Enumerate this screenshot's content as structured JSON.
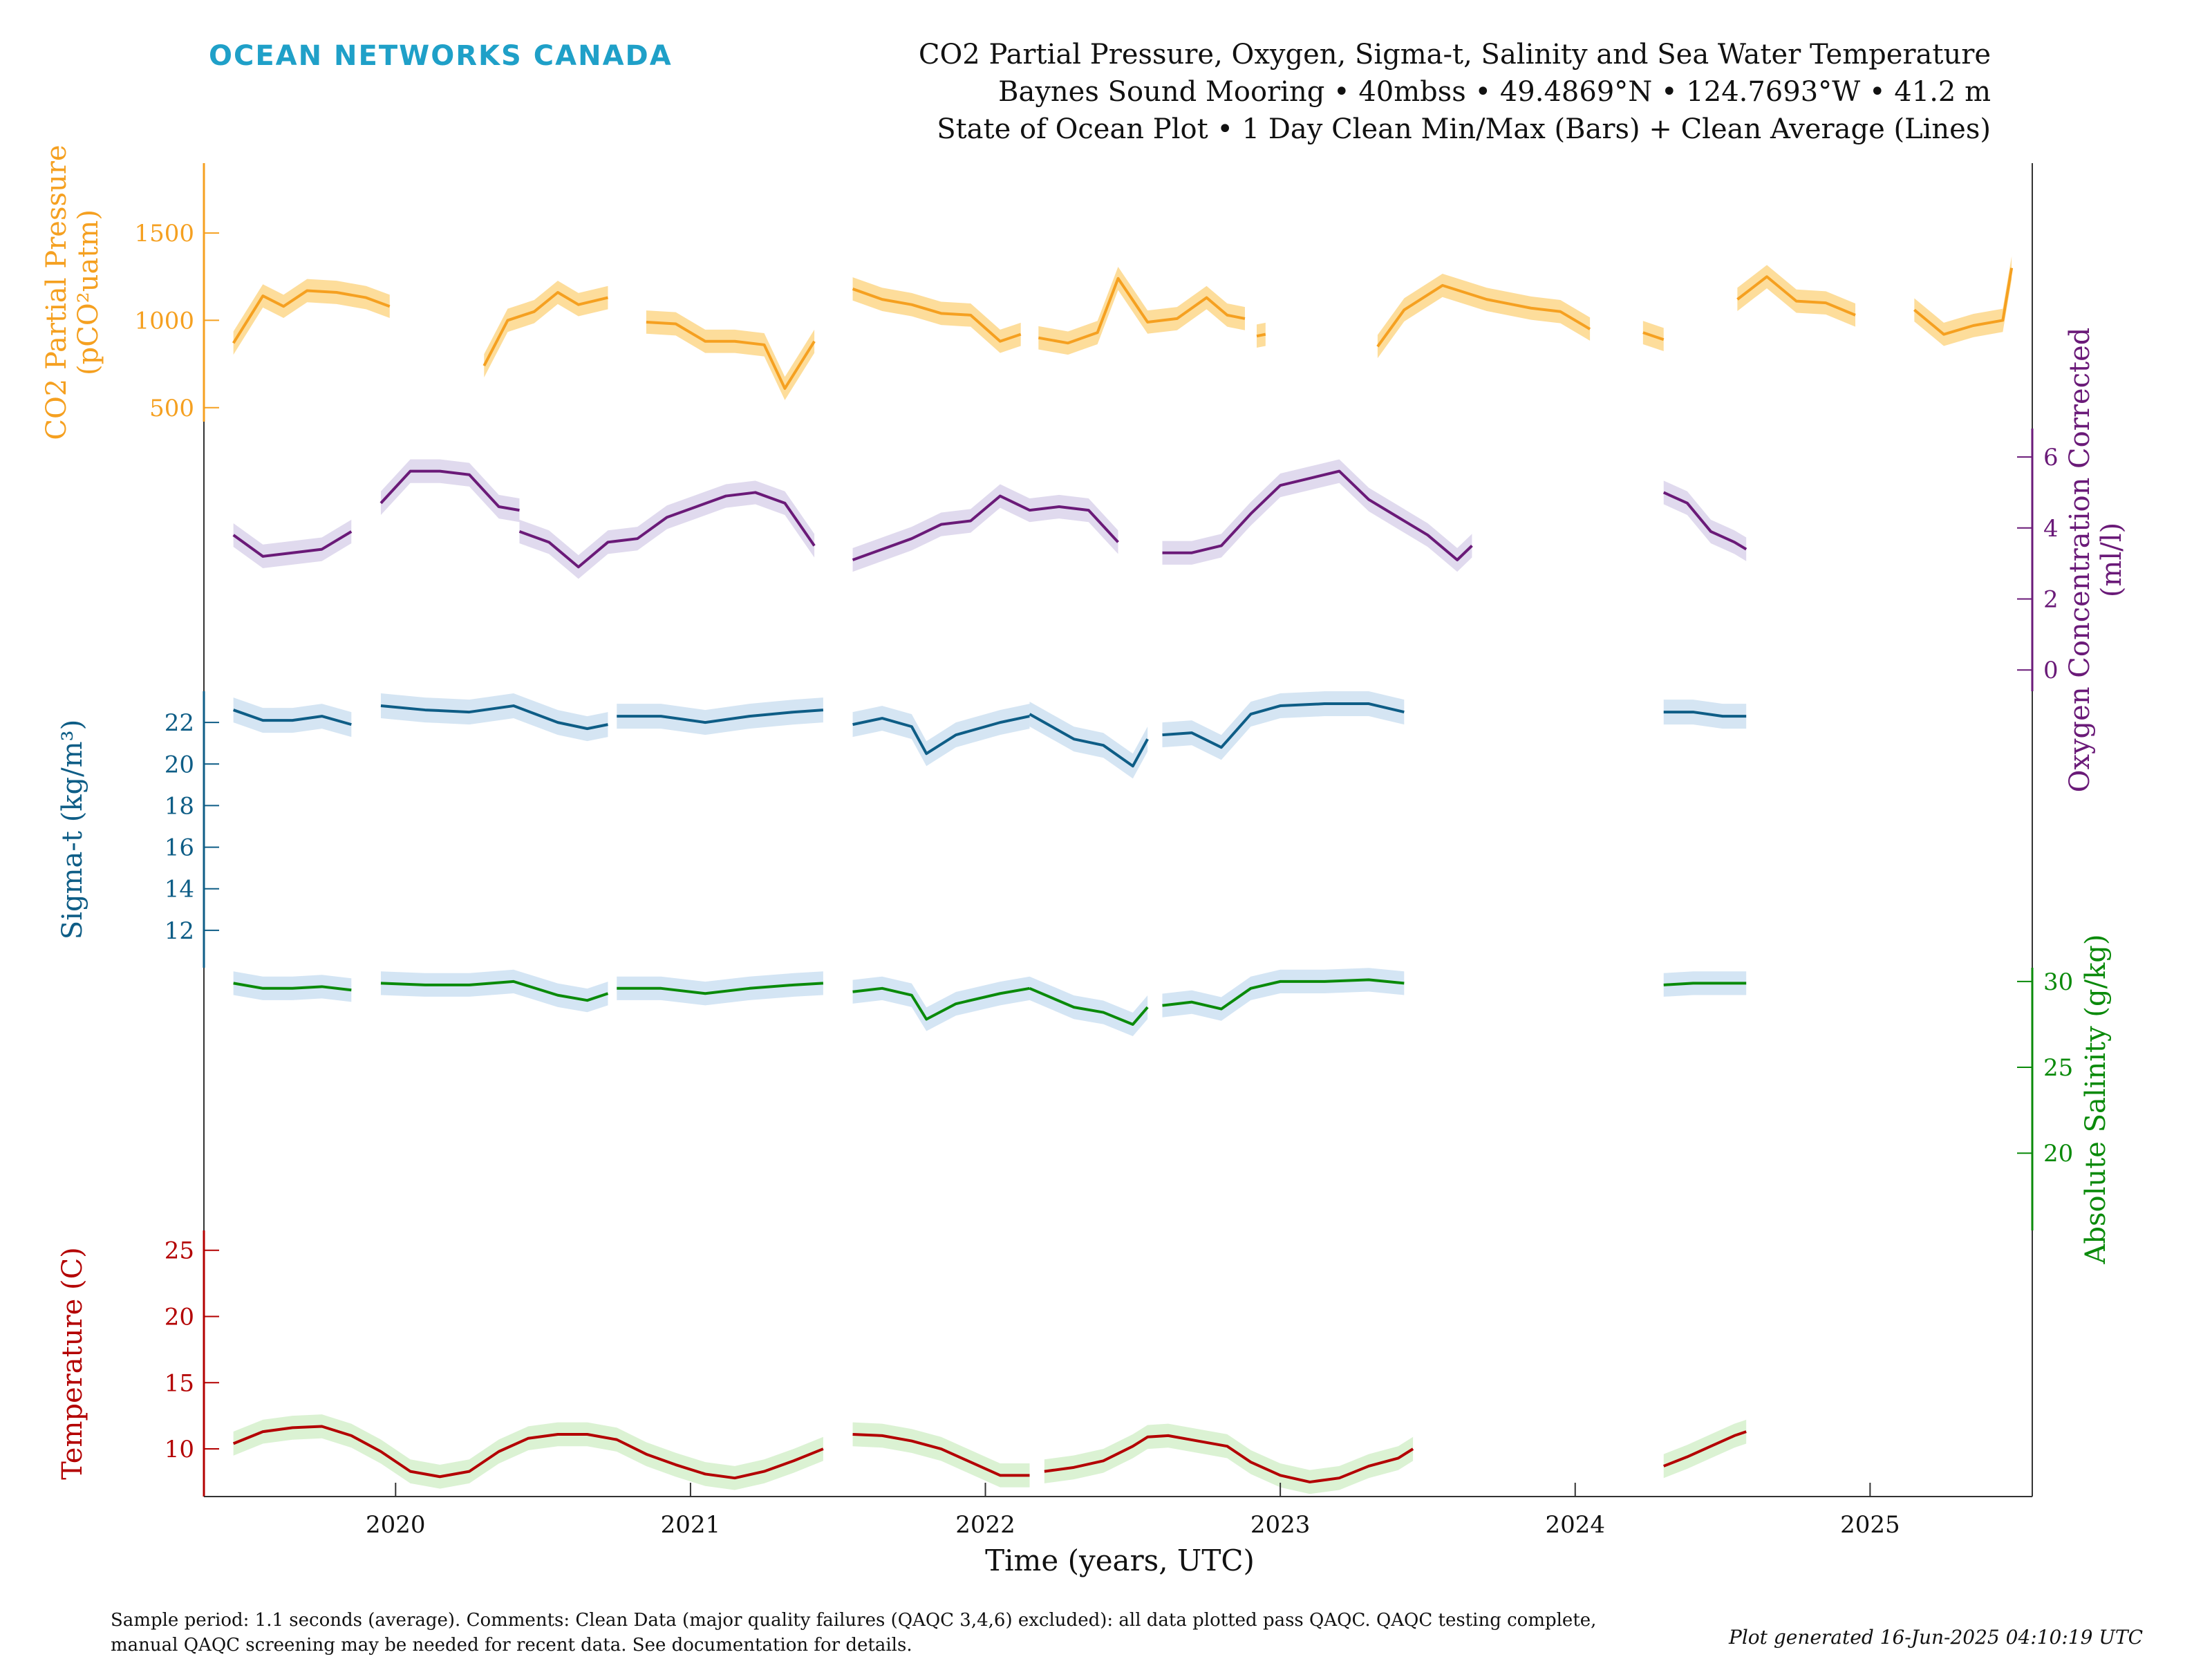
{
  "header": {
    "brand": "OCEAN NETWORKS CANADA",
    "brand_color": "#1fa0c8",
    "title_lines": [
      "CO2 Partial Pressure, Oxygen, Sigma-t, Salinity and Sea Water Temperature",
      "Baynes Sound Mooring • 40mbss • 49.4869°N • 124.7693°W • 41.2 m",
      "State of Ocean Plot • 1 Day Clean Min/Max (Bars) + Clean Average (Lines)"
    ]
  },
  "footer": {
    "notes": [
      "Sample period: 1.1 seconds (average). Comments: Clean Data (major quality failures (QAQC 3,4,6) excluded): all data plotted pass QAQC. QAQC testing complete,",
      "manual QAQC screening may be needed for recent data. See documentation for details."
    ],
    "generated": "Plot generated 16-Jun-2025 04:10:19 UTC"
  },
  "chart_data": {
    "type": "line",
    "xlabel": "Time (years, UTC)",
    "xlim": [
      2019.35,
      2025.55
    ],
    "xticks": [
      "2020",
      "2021",
      "2022",
      "2023",
      "2024",
      "2025"
    ],
    "xtick_values": [
      2020,
      2021,
      2022,
      2023,
      2024,
      2025
    ],
    "series": [
      {
        "key": "co2",
        "ylabel_lines": [
          "CO2 Partial Pressure",
          "(pCO²uatm)"
        ],
        "axis_side": "left",
        "color": "#f5a020",
        "band_color": "#fcd27a",
        "ylim": [
          420,
          1900
        ],
        "yticks": [
          500,
          1000,
          1500
        ],
        "segments": [
          {
            "x": [
              2019.45,
              2019.55,
              2019.62,
              2019.7,
              2019.8,
              2019.9,
              2019.98
            ],
            "y": [
              870,
              1140,
              1080,
              1170,
              1160,
              1130,
              1080
            ]
          },
          {
            "x": [
              2020.3,
              2020.38,
              2020.47,
              2020.55,
              2020.62,
              2020.72
            ],
            "y": [
              740,
              1000,
              1050,
              1160,
              1090,
              1130
            ]
          },
          {
            "x": [
              2020.85,
              2020.95,
              2021.05,
              2021.15,
              2021.25,
              2021.32,
              2021.42
            ],
            "y": [
              990,
              980,
              880,
              880,
              860,
              610,
              880
            ]
          },
          {
            "x": [
              2021.55,
              2021.65,
              2021.75,
              2021.85,
              2021.95,
              2022.05,
              2022.12
            ],
            "y": [
              1180,
              1120,
              1090,
              1040,
              1030,
              880,
              920
            ]
          },
          {
            "x": [
              2022.18,
              2022.28,
              2022.38,
              2022.45,
              2022.55,
              2022.65,
              2022.75,
              2022.82,
              2022.88
            ],
            "y": [
              900,
              870,
              930,
              1240,
              990,
              1010,
              1130,
              1030,
              1010
            ]
          },
          {
            "x": [
              2022.92,
              2022.95
            ],
            "y": [
              910,
              920
            ]
          },
          {
            "x": [
              2023.33,
              2023.42,
              2023.55,
              2023.7,
              2023.85,
              2023.95,
              2024.05
            ],
            "y": [
              850,
              1060,
              1200,
              1120,
              1070,
              1050,
              950
            ]
          },
          {
            "x": [
              2024.23,
              2024.3
            ],
            "y": [
              930,
              890
            ]
          },
          {
            "x": [
              2024.55,
              2024.65,
              2024.75,
              2024.85,
              2024.95
            ],
            "y": [
              1120,
              1250,
              1110,
              1100,
              1030
            ]
          },
          {
            "x": [
              2025.15,
              2025.25,
              2025.35,
              2025.45,
              2025.48
            ],
            "y": [
              1060,
              920,
              970,
              1000,
              1300
            ]
          }
        ]
      },
      {
        "key": "oxygen",
        "ylabel_lines": [
          "Oxygen Concentration Corrected",
          "(ml/l)"
        ],
        "axis_side": "right",
        "color": "#6a1a78",
        "band_color": "#d6cde8",
        "ylim": [
          -0.6,
          6.8
        ],
        "yticks": [
          0,
          2,
          4,
          6
        ],
        "segments": [
          {
            "x": [
              2019.45,
              2019.55,
              2019.65,
              2019.75,
              2019.85
            ],
            "y": [
              3.8,
              3.2,
              3.3,
              3.4,
              3.9
            ]
          },
          {
            "x": [
              2019.95,
              2020.05,
              2020.15,
              2020.25,
              2020.35,
              2020.42
            ],
            "y": [
              4.7,
              5.6,
              5.6,
              5.5,
              4.6,
              4.5
            ]
          },
          {
            "x": [
              2020.42,
              2020.52,
              2020.62,
              2020.72,
              2020.82,
              2020.92,
              2021.02,
              2021.12,
              2021.22,
              2021.32,
              2021.42
            ],
            "y": [
              3.9,
              3.6,
              2.9,
              3.6,
              3.7,
              4.3,
              4.6,
              4.9,
              5.0,
              4.7,
              3.5
            ]
          },
          {
            "x": [
              2021.55,
              2021.65,
              2021.75,
              2021.85,
              2021.95,
              2022.05,
              2022.15,
              2022.25,
              2022.35,
              2022.45
            ],
            "y": [
              3.1,
              3.4,
              3.7,
              4.1,
              4.2,
              4.9,
              4.5,
              4.6,
              4.5,
              3.6
            ]
          },
          {
            "x": [
              2022.6,
              2022.7,
              2022.8,
              2022.9,
              2023.0,
              2023.1,
              2023.2,
              2023.3,
              2023.4,
              2023.5,
              2023.6,
              2023.65
            ],
            "y": [
              3.3,
              3.3,
              3.5,
              4.4,
              5.2,
              5.4,
              5.6,
              4.8,
              4.3,
              3.8,
              3.1,
              3.5
            ]
          },
          {
            "x": [
              2024.3,
              2024.38,
              2024.46,
              2024.54,
              2024.58
            ],
            "y": [
              5.0,
              4.7,
              3.9,
              3.6,
              3.4
            ]
          }
        ]
      },
      {
        "key": "sigma_t",
        "ylabel_lines": [
          "Sigma-t (kg/m³)"
        ],
        "axis_side": "left",
        "color": "#0e5d86",
        "band_color": "#c7dcef",
        "ylim": [
          10.2,
          23.5
        ],
        "yticks": [
          12,
          14,
          16,
          18,
          20,
          22
        ],
        "segments": [
          {
            "x": [
              2019.45,
              2019.55,
              2019.65,
              2019.75,
              2019.85
            ],
            "y": [
              22.6,
              22.1,
              22.1,
              22.3,
              21.9
            ]
          },
          {
            "x": [
              2019.95,
              2020.1,
              2020.25,
              2020.4,
              2020.55,
              2020.65,
              2020.72
            ],
            "y": [
              22.8,
              22.6,
              22.5,
              22.8,
              22.0,
              21.7,
              21.9
            ]
          },
          {
            "x": [
              2020.75,
              2020.9,
              2021.05,
              2021.2,
              2021.35,
              2021.45
            ],
            "y": [
              22.3,
              22.3,
              22.0,
              22.3,
              22.5,
              22.6
            ]
          },
          {
            "x": [
              2021.55,
              2021.65,
              2021.75,
              2021.8,
              2021.9,
              2022.05,
              2022.15
            ],
            "y": [
              21.9,
              22.2,
              21.8,
              20.5,
              21.4,
              22.0,
              22.3
            ]
          },
          {
            "x": [
              2022.15,
              2022.3,
              2022.4,
              2022.5,
              2022.55
            ],
            "y": [
              22.4,
              21.2,
              20.9,
              19.9,
              21.2
            ]
          },
          {
            "x": [
              2022.6,
              2022.7,
              2022.8,
              2022.9,
              2023.0,
              2023.15,
              2023.3,
              2023.42
            ],
            "y": [
              21.4,
              21.5,
              20.8,
              22.4,
              22.8,
              22.9,
              22.9,
              22.5
            ]
          },
          {
            "x": [
              2024.3,
              2024.4,
              2024.5,
              2024.58
            ],
            "y": [
              22.5,
              22.5,
              22.3,
              22.3
            ]
          }
        ]
      },
      {
        "key": "salinity",
        "ylabel_lines": [
          "Absolute Salinity (g/kg)"
        ],
        "axis_side": "right",
        "color": "#0a8a0a",
        "band_color": "#c5dcf0",
        "ylim": [
          15.5,
          30.8
        ],
        "yticks": [
          20,
          25,
          30
        ],
        "segments": [
          {
            "x": [
              2019.45,
              2019.55,
              2019.65,
              2019.75,
              2019.85
            ],
            "y": [
              29.9,
              29.6,
              29.6,
              29.7,
              29.5
            ]
          },
          {
            "x": [
              2019.95,
              2020.1,
              2020.25,
              2020.4,
              2020.55,
              2020.65,
              2020.72
            ],
            "y": [
              29.9,
              29.8,
              29.8,
              30.0,
              29.2,
              28.9,
              29.3
            ]
          },
          {
            "x": [
              2020.75,
              2020.9,
              2021.05,
              2021.2,
              2021.35,
              2021.45
            ],
            "y": [
              29.6,
              29.6,
              29.3,
              29.6,
              29.8,
              29.9
            ]
          },
          {
            "x": [
              2021.55,
              2021.65,
              2021.75,
              2021.8,
              2021.9,
              2022.05,
              2022.15
            ],
            "y": [
              29.4,
              29.6,
              29.2,
              27.8,
              28.7,
              29.3,
              29.6
            ]
          },
          {
            "x": [
              2022.15,
              2022.3,
              2022.4,
              2022.5,
              2022.55
            ],
            "y": [
              29.6,
              28.5,
              28.2,
              27.5,
              28.5
            ]
          },
          {
            "x": [
              2022.6,
              2022.7,
              2022.8,
              2022.9,
              2023.0,
              2023.15,
              2023.3,
              2023.42
            ],
            "y": [
              28.6,
              28.8,
              28.4,
              29.6,
              30.0,
              30.0,
              30.1,
              29.9
            ]
          },
          {
            "x": [
              2024.3,
              2024.4,
              2024.5,
              2024.58
            ],
            "y": [
              29.8,
              29.9,
              29.9,
              29.9
            ]
          }
        ]
      },
      {
        "key": "temperature",
        "ylabel_lines": [
          "Temperature (C)"
        ],
        "axis_side": "left",
        "color": "#b30000",
        "band_color": "#cfeec4",
        "ylim": [
          6.4,
          26.5
        ],
        "yticks": [
          10,
          15,
          20,
          25
        ],
        "segments": [
          {
            "x": [
              2019.45,
              2019.55,
              2019.65,
              2019.75,
              2019.85,
              2019.95,
              2020.05,
              2020.15,
              2020.25,
              2020.35,
              2020.45,
              2020.55,
              2020.65,
              2020.75,
              2020.85,
              2020.95,
              2021.05,
              2021.15,
              2021.25,
              2021.35,
              2021.45
            ],
            "y": [
              10.4,
              11.3,
              11.6,
              11.7,
              11.0,
              9.8,
              8.3,
              7.9,
              8.3,
              9.8,
              10.8,
              11.1,
              11.1,
              10.7,
              9.6,
              8.8,
              8.1,
              7.8,
              8.3,
              9.1,
              10.0
            ]
          },
          {
            "x": [
              2021.55,
              2021.65,
              2021.75,
              2021.85,
              2021.95,
              2022.05,
              2022.15
            ],
            "y": [
              11.1,
              11.0,
              10.6,
              10.0,
              9.0,
              8.0,
              8.0
            ]
          },
          {
            "x": [
              2022.2,
              2022.3,
              2022.4,
              2022.5,
              2022.55,
              2022.62,
              2022.72,
              2022.82,
              2022.9,
              2023.0,
              2023.1,
              2023.2,
              2023.3,
              2023.4,
              2023.45
            ],
            "y": [
              8.3,
              8.6,
              9.1,
              10.2,
              10.9,
              11.0,
              10.6,
              10.2,
              9.0,
              8.0,
              7.5,
              7.8,
              8.7,
              9.3,
              10.0
            ]
          },
          {
            "x": [
              2024.3,
              2024.38,
              2024.46,
              2024.54,
              2024.58
            ],
            "y": [
              8.7,
              9.4,
              10.2,
              11.0,
              11.3
            ]
          }
        ]
      }
    ]
  }
}
